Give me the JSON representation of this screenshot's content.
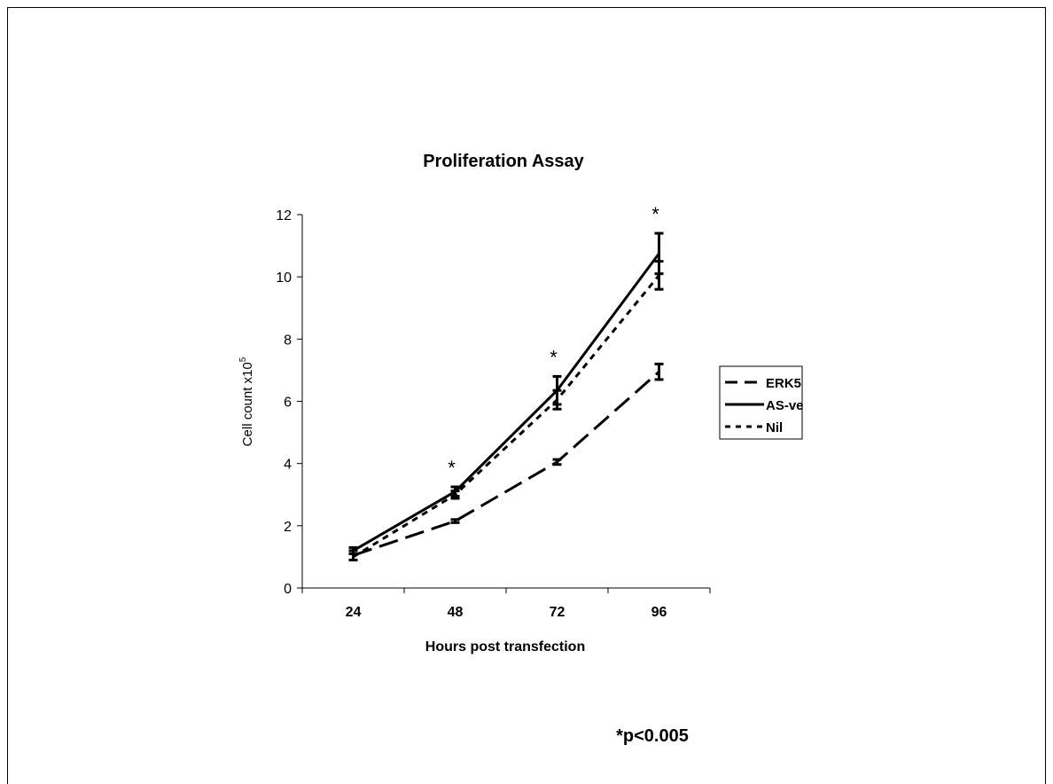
{
  "chart_data": {
    "type": "line",
    "title": "Proliferation Assay",
    "xlabel": "Hours post transfection",
    "ylabel": "Cell count x10",
    "ylabel_superscript": "5",
    "categories": [
      "24",
      "48",
      "72",
      "96"
    ],
    "ylim": [
      0,
      12
    ],
    "yticks": [
      "0",
      "2",
      "4",
      "6",
      "8",
      "10",
      "12"
    ],
    "grid": false,
    "legend_position": "right",
    "series": [
      {
        "name": "ERK5",
        "style": "dashed",
        "values": [
          1.05,
          2.15,
          4.05,
          6.95
        ],
        "errors": [
          0.15,
          0.05,
          0.08,
          0.25
        ]
      },
      {
        "name": "AS-ve",
        "style": "solid",
        "values": [
          1.2,
          3.1,
          6.35,
          10.75
        ],
        "errors": [
          0.1,
          0.15,
          0.45,
          0.65
        ]
      },
      {
        "name": "Nil",
        "style": "dotted",
        "values": [
          1.0,
          3.0,
          6.05,
          10.05
        ],
        "errors": [
          0.1,
          0.12,
          0.3,
          0.45
        ]
      }
    ],
    "significance_markers": [
      "",
      "*",
      "*",
      "*"
    ],
    "footnote": "*p<0.005"
  }
}
